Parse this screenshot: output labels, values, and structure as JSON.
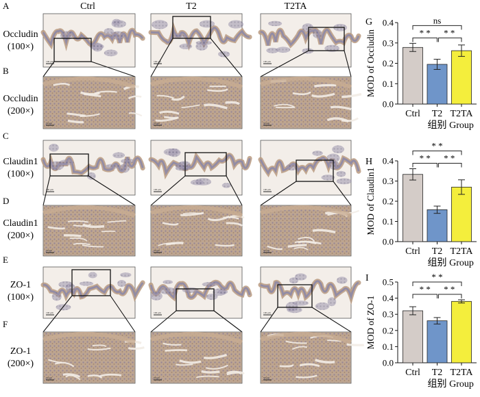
{
  "columns": [
    "Ctrl",
    "T2",
    "T2TA"
  ],
  "rows": [
    {
      "letter": "A",
      "marker": "Occludin",
      "mag": "(100×)"
    },
    {
      "letter": "B",
      "marker": "Occludin",
      "mag": "(200×)"
    },
    {
      "letter": "C",
      "marker": "Claudin1",
      "mag": "(100×)"
    },
    {
      "letter": "D",
      "marker": "Claudin1",
      "mag": "(200×)"
    },
    {
      "letter": "E",
      "marker": "ZO-1",
      "mag": "(100×)"
    },
    {
      "letter": "F",
      "marker": "ZO-1",
      "mag": "(200×)"
    }
  ],
  "scale_bar_labels": {
    "low_mag": "100 μm",
    "high_mag": "50 μm"
  },
  "colors": {
    "Ctrl": "#d4ccc8",
    "T2": "#6f95c9",
    "T2TA": "#f4ee3c",
    "tissue_stain": "#a8876c",
    "villi": "#8e89a6"
  },
  "chart_data": [
    {
      "type": "bar",
      "panel": "G",
      "categories": [
        "Ctrl",
        "T2",
        "T2TA"
      ],
      "values": [
        0.278,
        0.195,
        0.262
      ],
      "errors": [
        0.02,
        0.025,
        0.028
      ],
      "ylabel": "MOD of Occludin",
      "xlabel_cn": "组别",
      "xlabel_en": "Group",
      "ylim": [
        0,
        0.4
      ],
      "yticks": [
        "0.0",
        "0.1",
        "0.2",
        "0.3",
        "0.4"
      ],
      "significance": [
        {
          "from": 0,
          "to": 1,
          "label": "* *"
        },
        {
          "from": 1,
          "to": 2,
          "label": "* *"
        },
        {
          "from": 0,
          "to": 2,
          "label": "ns"
        }
      ]
    },
    {
      "type": "bar",
      "panel": "H",
      "categories": [
        "Ctrl",
        "T2",
        "T2TA"
      ],
      "values": [
        0.333,
        0.158,
        0.27
      ],
      "errors": [
        0.028,
        0.018,
        0.036
      ],
      "ylabel": "MOD of Claudin1",
      "xlabel_cn": "组别",
      "xlabel_en": "Group",
      "ylim": [
        0,
        0.4
      ],
      "yticks": [
        "0.0",
        "0.1",
        "0.2",
        "0.3",
        "0.4"
      ],
      "significance": [
        {
          "from": 0,
          "to": 1,
          "label": "* *"
        },
        {
          "from": 1,
          "to": 2,
          "label": "* *"
        },
        {
          "from": 0,
          "to": 2,
          "label": "* *"
        }
      ]
    },
    {
      "type": "bar",
      "panel": "I",
      "categories": [
        "Ctrl",
        "T2",
        "T2TA"
      ],
      "values": [
        0.322,
        0.26,
        0.38
      ],
      "errors": [
        0.025,
        0.02,
        0.01
      ],
      "ylabel": "MOD of ZO-1",
      "xlabel_cn": "组别",
      "xlabel_en": "Group",
      "ylim": [
        0,
        0.5
      ],
      "yticks": [
        "0.0",
        "0.1",
        "0.2",
        "0.3",
        "0.4",
        "0.5"
      ],
      "significance": [
        {
          "from": 0,
          "to": 1,
          "label": "* *"
        },
        {
          "from": 1,
          "to": 2,
          "label": "* *"
        },
        {
          "from": 0,
          "to": 2,
          "label": "* *"
        }
      ]
    }
  ]
}
